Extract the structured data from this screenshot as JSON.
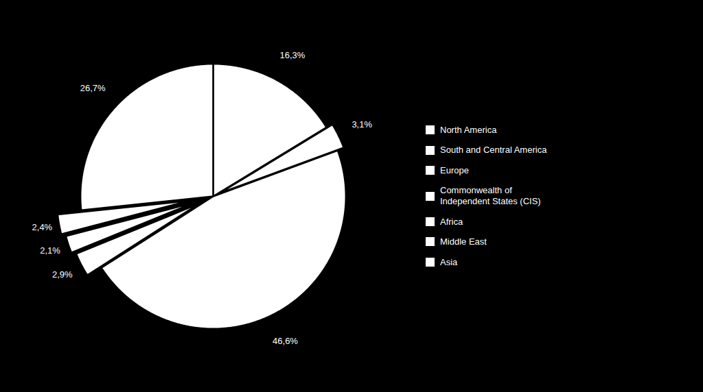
{
  "chart_data": {
    "type": "pie",
    "categories": [
      "North America",
      "South and Central America",
      "Europe",
      "Commonwealth of\nIndependent States (CIS)",
      "Africa",
      "Middle East",
      "Asia"
    ],
    "values": [
      16.3,
      3.1,
      46.6,
      2.9,
      2.1,
      2.4,
      26.7
    ],
    "value_labels": [
      "16,3%",
      "3,1%",
      "46,6%",
      "2,9%",
      "2,1%",
      "2,4%",
      "26,7%"
    ],
    "colors": [
      "#ffffff",
      "#ffffff",
      "#ffffff",
      "#ffffff",
      "#ffffff",
      "#ffffff",
      "#ffffff"
    ],
    "data_labels": true,
    "legend": "right"
  }
}
